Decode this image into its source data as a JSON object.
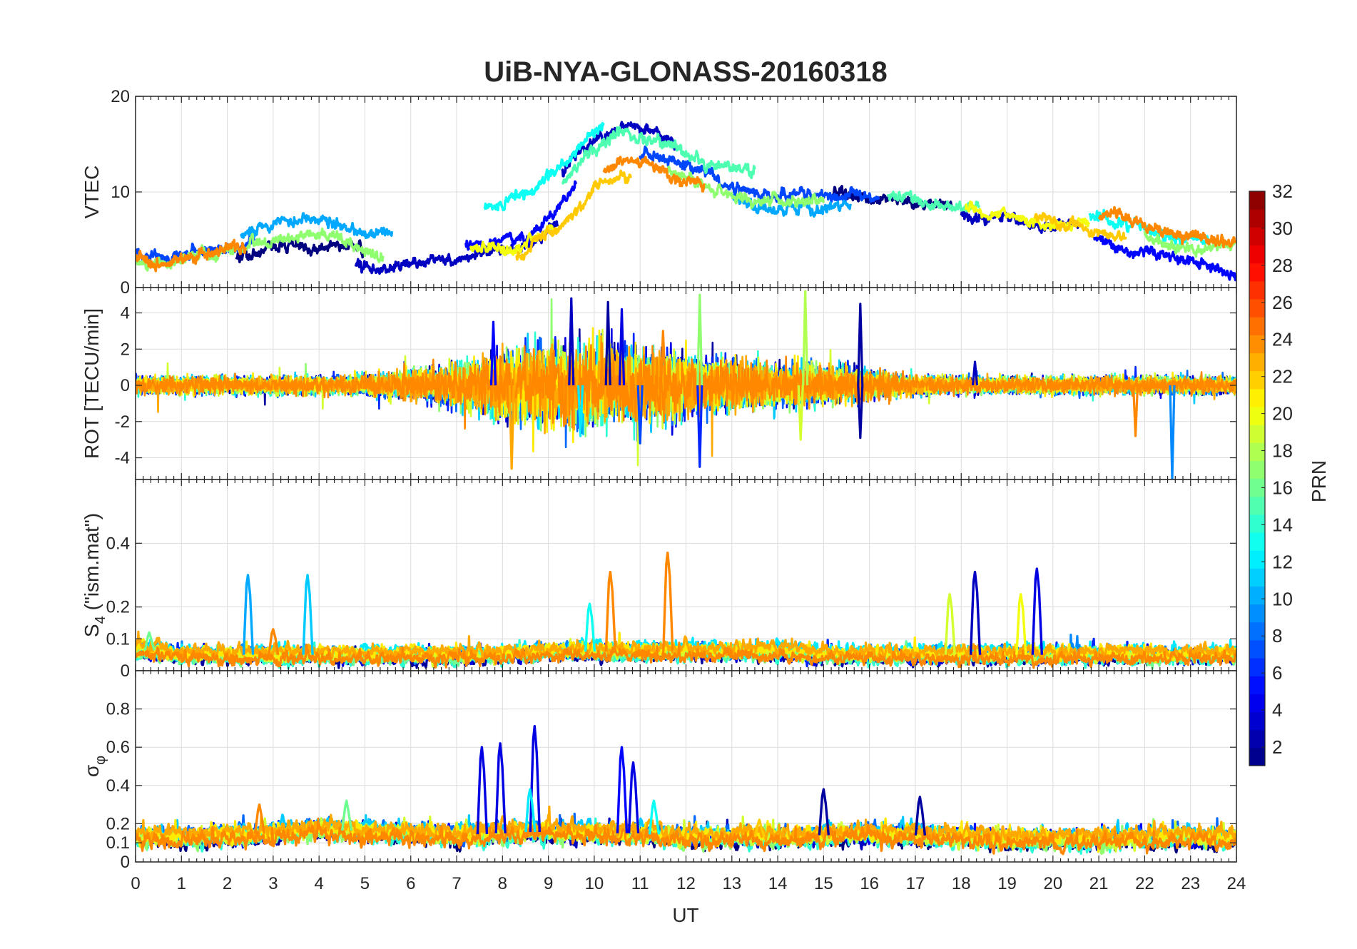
{
  "chart_data": {
    "type": "line",
    "title": "UiB-NYA-GLONASS-20160318",
    "xlabel": "UT",
    "xlim": [
      0,
      24
    ],
    "x_ticks": [
      "0",
      "1",
      "2",
      "3",
      "4",
      "5",
      "6",
      "7",
      "8",
      "9",
      "10",
      "11",
      "12",
      "13",
      "14",
      "15",
      "16",
      "17",
      "18",
      "19",
      "20",
      "21",
      "22",
      "23",
      "24"
    ],
    "grid": true,
    "panels": [
      {
        "ylabel": "VTEC",
        "ylim": [
          0,
          20
        ],
        "y_ticks": [
          "0",
          "10",
          "20"
        ],
        "baseline": [
          3.5,
          3.2,
          3.5,
          4.0,
          4.8,
          5.2,
          5.0,
          4.5,
          4.6,
          4.9,
          5.2,
          5.4,
          6.0,
          8.5,
          12.5,
          14.5,
          13.5,
          12.0,
          11.0,
          10.0,
          9.5,
          9.6,
          9.5,
          9.3,
          8.8,
          8.6,
          8.3,
          7.8,
          7.5,
          7.2,
          6.5,
          5.3,
          4.5,
          4.0,
          3.5
        ],
        "series": [
          {
            "prn": 1,
            "segments": [
              {
                "from": 2.2,
                "to": 5.0,
                "offset": -0.8
              },
              {
                "from": 15.2,
                "to": 17.8,
                "offset": 0.4
              }
            ]
          },
          {
            "prn": 3,
            "segments": [
              {
                "from": 4.8,
                "to": 9.2,
                "offset": -2.2
              },
              {
                "from": 9.3,
                "to": 11.8,
                "offset": 2.6
              },
              {
                "from": 18.0,
                "to": 20.6,
                "offset": -0.9
              }
            ]
          },
          {
            "prn": 5,
            "segments": [
              {
                "from": 7.2,
                "to": 9.6,
                "offset": -0.5
              },
              {
                "from": 20.9,
                "to": 24.0,
                "offset": -1.6
              }
            ]
          },
          {
            "prn": 7,
            "segments": [
              {
                "from": 0.0,
                "to": 2.6,
                "offset": 0.3
              },
              {
                "from": 11.0,
                "to": 16.2,
                "offset": 0.2
              }
            ]
          },
          {
            "prn": 10,
            "segments": [
              {
                "from": 2.3,
                "to": 5.6,
                "offset": 1.3
              },
              {
                "from": 13.0,
                "to": 15.6,
                "offset": -1.2
              }
            ]
          },
          {
            "prn": 13,
            "segments": [
              {
                "from": 7.6,
                "to": 10.2,
                "offset": 3.2
              },
              {
                "from": 20.8,
                "to": 23.4,
                "offset": 0.7
              }
            ]
          },
          {
            "prn": 15,
            "segments": [
              {
                "from": 9.3,
                "to": 13.5,
                "offset": 1.8
              },
              {
                "from": 16.4,
                "to": 18.4,
                "offset": 0.2
              }
            ]
          },
          {
            "prn": 17,
            "segments": [
              {
                "from": 0.0,
                "to": 5.4,
                "offset": -0.6
              },
              {
                "from": 11.6,
                "to": 15.0,
                "offset": -0.7
              },
              {
                "from": 22.0,
                "to": 24.0,
                "offset": 0.3
              }
            ]
          },
          {
            "prn": 20,
            "segments": [
              {
                "from": 7.3,
                "to": 9.1,
                "offset": -1.5
              },
              {
                "from": 18.1,
                "to": 20.8,
                "offset": 0.1
              }
            ]
          },
          {
            "prn": 22,
            "segments": [
              {
                "from": 8.3,
                "to": 10.8,
                "offset": -2.5
              },
              {
                "from": 19.6,
                "to": 21.6,
                "offset": -0.2
              }
            ]
          },
          {
            "prn": 24,
            "segments": [
              {
                "from": 0.0,
                "to": 2.4,
                "offset": -0.3
              },
              {
                "from": 10.2,
                "to": 12.4,
                "offset": -1.0
              },
              {
                "from": 21.0,
                "to": 24.0,
                "offset": 0.5
              }
            ]
          }
        ]
      },
      {
        "ylabel": "ROT [TECU/min]",
        "ylim": [
          -5.2,
          5.4
        ],
        "y_ticks": [
          "-4",
          "-2",
          "0",
          "2",
          "4"
        ],
        "noise_envelope": [
          0.35,
          0.35,
          0.35,
          0.35,
          0.35,
          0.4,
          0.6,
          0.9,
          1.4,
          1.6,
          1.6,
          1.5,
          1.2,
          1.0,
          0.9,
          0.8,
          0.6,
          0.4,
          0.35,
          0.35,
          0.35,
          0.35,
          0.35,
          0.35,
          0.35
        ],
        "spikes": [
          {
            "t": 9.5,
            "v": 4.8,
            "prn": 3
          },
          {
            "t": 10.3,
            "v": 4.6,
            "prn": 2
          },
          {
            "t": 10.6,
            "v": 4.2,
            "prn": 4
          },
          {
            "t": 12.3,
            "v": 5.0,
            "prn": 17
          },
          {
            "t": 14.6,
            "v": 5.2,
            "prn": 18
          },
          {
            "t": 15.8,
            "v": 4.5,
            "prn": 2
          },
          {
            "t": 8.2,
            "v": -4.6,
            "prn": 23
          },
          {
            "t": 12.3,
            "v": -4.5,
            "prn": 6
          },
          {
            "t": 22.6,
            "v": -5.2,
            "prn": 9
          },
          {
            "t": 21.8,
            "v": -2.8,
            "prn": 24
          },
          {
            "t": 15.8,
            "v": -2.9,
            "prn": 2
          },
          {
            "t": 7.8,
            "v": 3.5,
            "prn": 5
          },
          {
            "t": 14.5,
            "v": -3.0,
            "prn": 19
          },
          {
            "t": 11.5,
            "v": 3.0,
            "prn": 24
          },
          {
            "t": 11.0,
            "v": -3.2,
            "prn": 7
          },
          {
            "t": 9.7,
            "v": -2.8,
            "prn": 12
          },
          {
            "t": 18.3,
            "v": 1.3,
            "prn": 3
          }
        ],
        "series": [
          {
            "prn": 2
          },
          {
            "prn": 4
          },
          {
            "prn": 6
          },
          {
            "prn": 8
          },
          {
            "prn": 11
          },
          {
            "prn": 14
          },
          {
            "prn": 17
          },
          {
            "prn": 19
          },
          {
            "prn": 21
          },
          {
            "prn": 23
          },
          {
            "prn": 24
          }
        ]
      },
      {
        "ylabel": "S4 (\"ism.mat\")",
        "ylabel_main": "S",
        "ylabel_sub": "4",
        "ylabel_rest": " (\"ism.mat\")",
        "ylim": [
          0,
          0.6
        ],
        "y_ticks": [
          "0",
          "0.1",
          "0.2",
          "0.4"
        ],
        "base_level": [
          0.07,
          0.05,
          0.05,
          0.05,
          0.05,
          0.05,
          0.05,
          0.05,
          0.05,
          0.06,
          0.06,
          0.06,
          0.06,
          0.06,
          0.06,
          0.05,
          0.05,
          0.05,
          0.05,
          0.05,
          0.05,
          0.05,
          0.05,
          0.05,
          0.05
        ],
        "peaks": [
          {
            "t": 2.45,
            "v": 0.3,
            "prn": 10
          },
          {
            "t": 3.75,
            "v": 0.3,
            "prn": 11
          },
          {
            "t": 10.35,
            "v": 0.31,
            "prn": 24
          },
          {
            "t": 11.6,
            "v": 0.37,
            "prn": 24
          },
          {
            "t": 18.3,
            "v": 0.31,
            "prn": 3
          },
          {
            "t": 19.65,
            "v": 0.32,
            "prn": 4
          },
          {
            "t": 17.75,
            "v": 0.24,
            "prn": 19
          },
          {
            "t": 19.3,
            "v": 0.24,
            "prn": 20
          },
          {
            "t": 9.9,
            "v": 0.21,
            "prn": 13
          },
          {
            "t": 3.0,
            "v": 0.13,
            "prn": 24
          },
          {
            "t": 0.3,
            "v": 0.12,
            "prn": 16
          }
        ],
        "series": [
          {
            "prn": 2
          },
          {
            "prn": 4
          },
          {
            "prn": 6
          },
          {
            "prn": 9
          },
          {
            "prn": 12
          },
          {
            "prn": 14
          },
          {
            "prn": 16
          },
          {
            "prn": 19
          },
          {
            "prn": 21
          },
          {
            "prn": 23
          },
          {
            "prn": 24
          }
        ]
      },
      {
        "ylabel": "σφ",
        "ylabel_main": "σ",
        "ylabel_sub": "φ",
        "ylim": [
          0,
          1.0
        ],
        "y_ticks": [
          "0",
          "0.1",
          "0.2",
          "0.4",
          "0.6",
          "0.8"
        ],
        "base_level": [
          0.13,
          0.13,
          0.14,
          0.15,
          0.17,
          0.16,
          0.15,
          0.14,
          0.15,
          0.16,
          0.15,
          0.15,
          0.13,
          0.13,
          0.13,
          0.14,
          0.15,
          0.14,
          0.13,
          0.12,
          0.12,
          0.12,
          0.13,
          0.13,
          0.13
        ],
        "peaks": [
          {
            "t": 7.55,
            "v": 0.6,
            "prn": 4
          },
          {
            "t": 7.95,
            "v": 0.62,
            "prn": 4
          },
          {
            "t": 8.7,
            "v": 0.71,
            "prn": 4
          },
          {
            "t": 10.6,
            "v": 0.6,
            "prn": 5
          },
          {
            "t": 10.85,
            "v": 0.52,
            "prn": 4
          },
          {
            "t": 15.0,
            "v": 0.38,
            "prn": 2
          },
          {
            "t": 17.1,
            "v": 0.34,
            "prn": 2
          },
          {
            "t": 11.3,
            "v": 0.32,
            "prn": 13
          },
          {
            "t": 8.6,
            "v": 0.38,
            "prn": 12
          },
          {
            "t": 4.6,
            "v": 0.32,
            "prn": 16
          },
          {
            "t": 2.7,
            "v": 0.3,
            "prn": 24
          },
          {
            "t": 13.6,
            "v": 0.22,
            "prn": 22
          }
        ],
        "series": [
          {
            "prn": 1
          },
          {
            "prn": 3
          },
          {
            "prn": 5
          },
          {
            "prn": 8
          },
          {
            "prn": 11
          },
          {
            "prn": 14
          },
          {
            "prn": 17
          },
          {
            "prn": 19
          },
          {
            "prn": 21
          },
          {
            "prn": 23
          },
          {
            "prn": 24
          }
        ]
      }
    ],
    "colorbar": {
      "label": "PRN",
      "range": [
        1,
        32
      ],
      "ticks": [
        "2",
        "4",
        "6",
        "8",
        "10",
        "12",
        "14",
        "16",
        "18",
        "20",
        "22",
        "24",
        "26",
        "28",
        "30",
        "32"
      ],
      "colormap": "jet",
      "steps": 32
    }
  }
}
